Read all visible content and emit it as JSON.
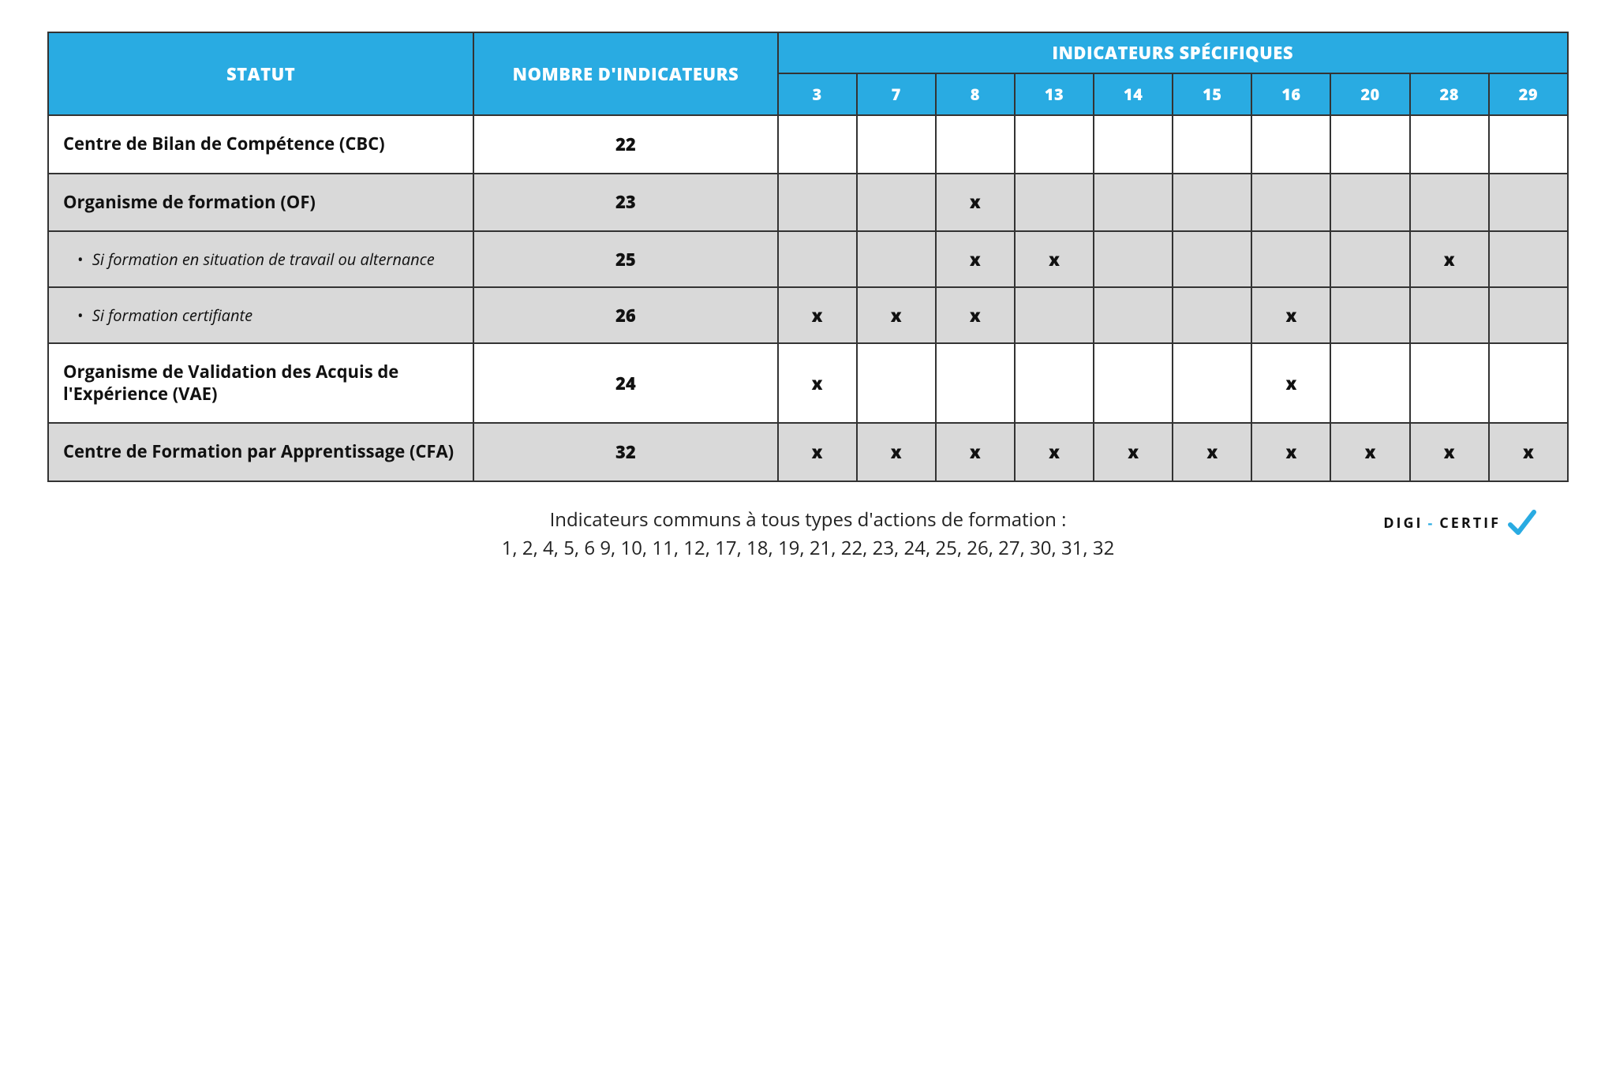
{
  "colors": {
    "header_bg": "#29abe2",
    "header_text": "#ffffff",
    "border": "#333333",
    "row_shaded": "#d9d9d9",
    "row_plain": "#ffffff",
    "text": "#111111"
  },
  "table": {
    "headers": {
      "statut": "STATUT",
      "nombre": "NOMBRE D'INDICATEURS",
      "specifiques": "INDICATEURS SPÉCIFIQUES",
      "cols": [
        "3",
        "7",
        "8",
        "13",
        "14",
        "15",
        "16",
        "20",
        "28",
        "29"
      ]
    },
    "col_widths": {
      "status_pct": 28,
      "count_pct": 20,
      "mark_pct": 5.2
    },
    "rows": [
      {
        "label": "Centre de Bilan de Compétence (CBC)",
        "sub": false,
        "shaded": false,
        "count": "22",
        "marks": [
          "",
          "",
          "",
          "",
          "",
          "",
          "",
          "",
          "",
          ""
        ]
      },
      {
        "label": "Organisme de formation (OF)",
        "sub": false,
        "shaded": true,
        "count": "23",
        "marks": [
          "",
          "",
          "x",
          "",
          "",
          "",
          "",
          "",
          "",
          ""
        ]
      },
      {
        "label": "Si formation en situation de travail ou alternance",
        "sub": true,
        "shaded": true,
        "count": "25",
        "marks": [
          "",
          "",
          "x",
          "x",
          "",
          "",
          "",
          "",
          "x",
          ""
        ]
      },
      {
        "label": "Si formation certifiante",
        "sub": true,
        "shaded": true,
        "count": "26",
        "marks": [
          "x",
          "x",
          "x",
          "",
          "",
          "",
          "x",
          "",
          "",
          ""
        ]
      },
      {
        "label": "Organisme de Validation des Acquis de l'Expérience (VAE)",
        "sub": false,
        "shaded": false,
        "count": "24",
        "marks": [
          "x",
          "",
          "",
          "",
          "",
          "",
          "x",
          "",
          "",
          ""
        ]
      },
      {
        "label": "Centre de Formation par Apprentissage (CFA)",
        "sub": false,
        "shaded": true,
        "count": "32",
        "marks": [
          "x",
          "x",
          "x",
          "x",
          "x",
          "x",
          "x",
          "x",
          "x",
          "x"
        ]
      }
    ]
  },
  "footer": {
    "line1": "Indicateurs communs à tous types d'actions de formation :",
    "line2": "1, 2, 4, 5, 6 9, 10, 11, 12, 17, 18, 19, 21, 22, 23, 24, 25, 26, 27, 30, 31, 32"
  },
  "logo": {
    "part1": "DIGI",
    "dash": "-",
    "part2": "CERTIF"
  }
}
